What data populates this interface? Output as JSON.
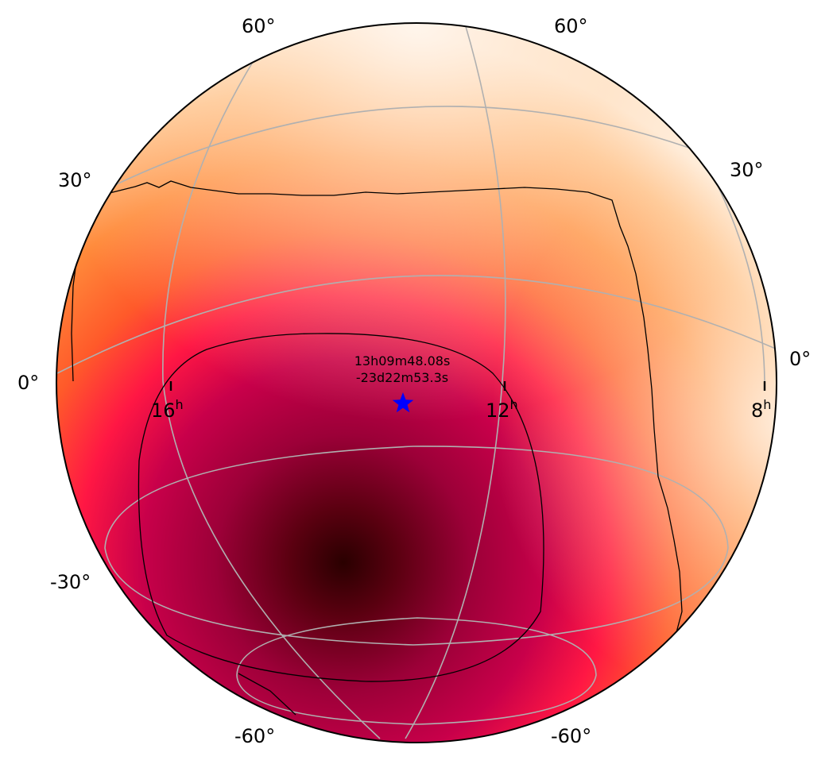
{
  "map": {
    "projection": "globe",
    "colormap": "gist_heat_r",
    "colors": {
      "sky_light": "#fff4e8",
      "sky_mid": "#ff8a3a",
      "sky_red": "#ff1744",
      "sky_crimson": "#c8004a",
      "sky_dark": "#5a0010",
      "sky_darkest": "#2a0000",
      "gridline": "#b0b0b0",
      "contour": "#000000",
      "marker": "#0000ff"
    },
    "declination_labels": {
      "left_top": "60°",
      "right_top": "60°",
      "left_30": "30°",
      "right_30": "30°",
      "left_0": "0°",
      "right_0": "0°",
      "left_m30": "-30°",
      "left_m60": "-60°",
      "right_m60": "-60°"
    },
    "ra_labels": [
      {
        "hours": "16",
        "unit": "h"
      },
      {
        "hours": "12",
        "unit": "h"
      },
      {
        "hours": "8",
        "unit": "h"
      }
    ],
    "marker": {
      "symbol": "star",
      "ra_label": "13h09m48.08s",
      "dec_label": "-23d22m53.3s"
    }
  }
}
